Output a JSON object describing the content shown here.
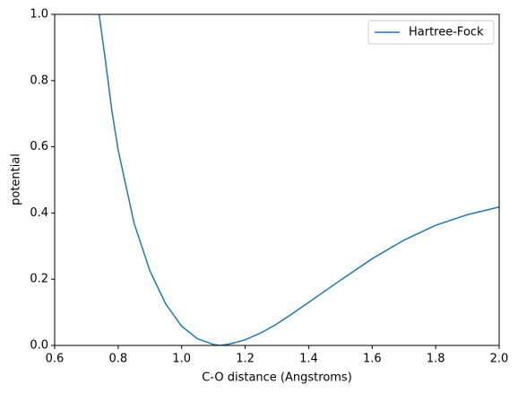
{
  "chart_data": {
    "type": "line",
    "xlabel": "C-O distance (Angstroms)",
    "ylabel": "potential",
    "x": [
      0.74,
      0.76,
      0.78,
      0.8,
      0.85,
      0.9,
      0.95,
      1.0,
      1.05,
      1.1,
      1.12,
      1.15,
      1.2,
      1.25,
      1.3,
      1.35,
      1.4,
      1.5,
      1.6,
      1.7,
      1.8,
      1.9,
      2.0
    ],
    "series": [
      {
        "name": "Hartree-Fock",
        "color": "#1f77b4",
        "values": [
          1.0,
          0.86,
          0.71,
          0.59,
          0.37,
          0.225,
          0.125,
          0.058,
          0.02,
          0.003,
          0.0,
          0.004,
          0.017,
          0.038,
          0.065,
          0.097,
          0.13,
          0.197,
          0.262,
          0.318,
          0.363,
          0.395,
          0.418
        ]
      }
    ],
    "xlim": [
      0.6,
      2.0
    ],
    "ylim": [
      0,
      1
    ],
    "xticks": [
      0.6,
      0.8,
      {
        "value": 1,
        "label": "1.0"
      },
      1.2,
      1.4,
      1.6,
      1.8,
      {
        "value": 2,
        "label": "2.0"
      }
    ],
    "yticks": [
      {
        "value": 0,
        "label": "0.0"
      },
      0.2,
      0.4,
      0.6,
      0.8,
      {
        "value": 1,
        "label": "1.0"
      }
    ],
    "legend": "upper right",
    "grid": false
  }
}
